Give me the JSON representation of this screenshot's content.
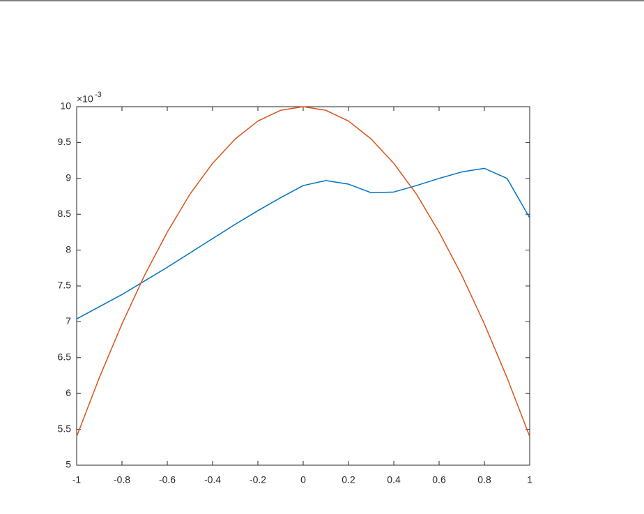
{
  "chart_data": {
    "type": "line",
    "y_exponent_base": "×10",
    "y_exponent": "-3",
    "x": [
      -1,
      -0.9,
      -0.8,
      -0.7,
      -0.6,
      -0.5,
      -0.4,
      -0.3,
      -0.2,
      -0.1,
      0,
      0.1,
      0.2,
      0.3,
      0.4,
      0.5,
      0.6,
      0.7,
      0.8,
      0.9,
      1
    ],
    "series": [
      {
        "color": "#0072bd",
        "values": [
          7.04,
          7.21,
          7.38,
          7.57,
          7.76,
          7.96,
          8.16,
          8.36,
          8.55,
          8.73,
          8.9,
          8.97,
          8.92,
          8.8,
          8.81,
          8.9,
          9.0,
          9.09,
          9.14,
          9.0,
          8.45
        ]
      },
      {
        "color": "#d95319",
        "values": [
          5.4,
          6.22,
          6.97,
          7.65,
          8.25,
          8.78,
          9.21,
          9.55,
          9.8,
          9.95,
          10,
          9.95,
          9.8,
          9.55,
          9.21,
          8.78,
          8.25,
          7.65,
          6.97,
          6.22,
          5.4
        ]
      }
    ],
    "xlim": [
      -1,
      1
    ],
    "xticks": [
      -1,
      -0.8,
      -0.6,
      -0.4,
      -0.2,
      0,
      0.2,
      0.4,
      0.6,
      0.8,
      1
    ],
    "ylim": [
      5,
      10
    ],
    "yticks": [
      5,
      5.5,
      6,
      6.5,
      7,
      7.5,
      8,
      8.5,
      9,
      9.5,
      10
    ]
  }
}
